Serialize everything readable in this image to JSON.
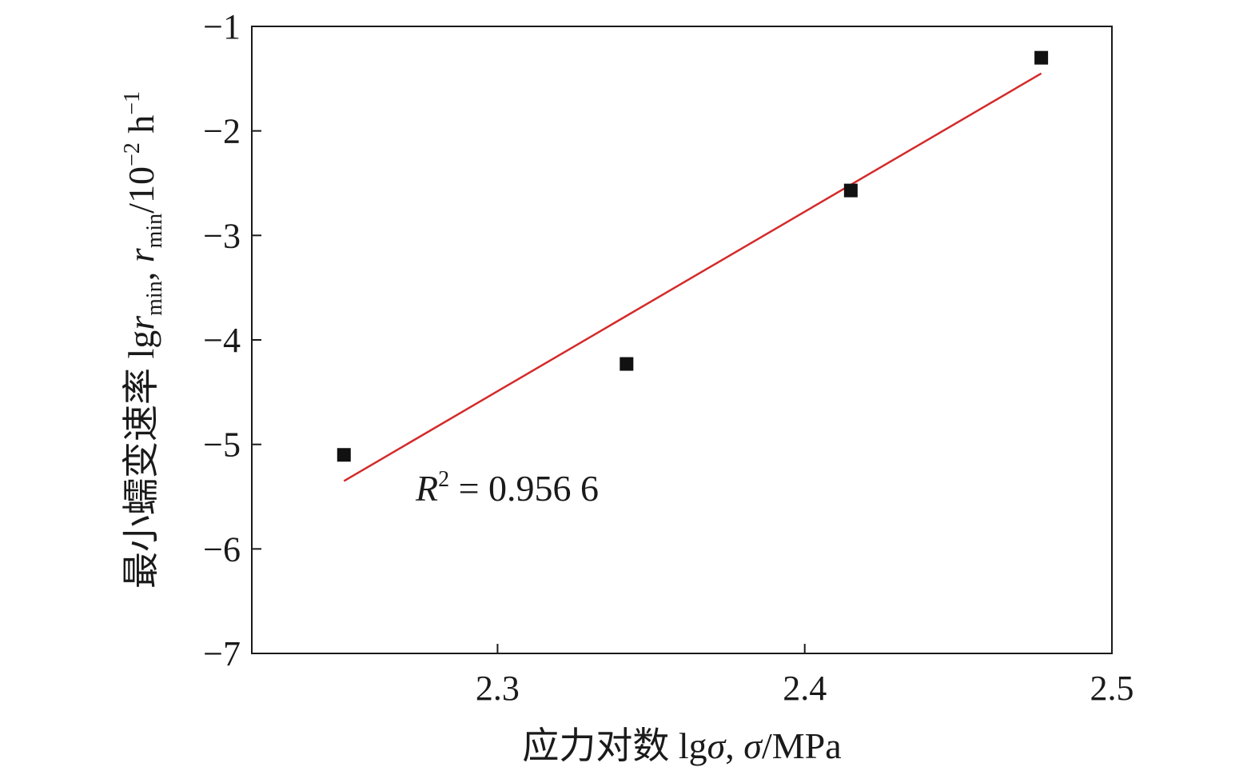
{
  "chart_data": {
    "type": "scatter",
    "xlim": [
      2.22,
      2.5
    ],
    "ylim": [
      -7,
      -1
    ],
    "xticks": [
      2.3,
      2.4,
      2.5
    ],
    "xtick_labels": [
      "2.3",
      "2.4",
      "2.5"
    ],
    "yticks": [
      -1,
      -2,
      -3,
      -4,
      -5,
      -6,
      -7
    ],
    "ytick_labels": [
      "−1",
      "−2",
      "−3",
      "−4",
      "−5",
      "−6",
      "−7"
    ],
    "xlabel": {
      "prefix": "应力对数 lg",
      "sigma": "σ",
      "sep": ", ",
      "sigma2": "σ",
      "unit": "/MPa"
    },
    "ylabel": {
      "prefix": "最小蠕变速率 lg",
      "r1": "r",
      "sub1": "min",
      "sep": ", ",
      "r2": "r",
      "sub2": "min",
      "unit": "/10",
      "exp": "−2",
      "unit2": " h",
      "exp2": "−1"
    },
    "points": [
      {
        "x": 2.25,
        "y": -5.1
      },
      {
        "x": 2.342,
        "y": -4.23
      },
      {
        "x": 2.415,
        "y": -2.57
      },
      {
        "x": 2.477,
        "y": -1.3
      }
    ],
    "fit_line": {
      "x1": 2.25,
      "y1": -5.35,
      "x2": 2.477,
      "y2": -1.45
    },
    "annotation": {
      "r": "R",
      "exp": "2",
      "text": " = 0.956 6"
    },
    "colors": {
      "fit": "#d42a2a",
      "marker": "#111111",
      "axis": "#1a1a1a"
    }
  }
}
